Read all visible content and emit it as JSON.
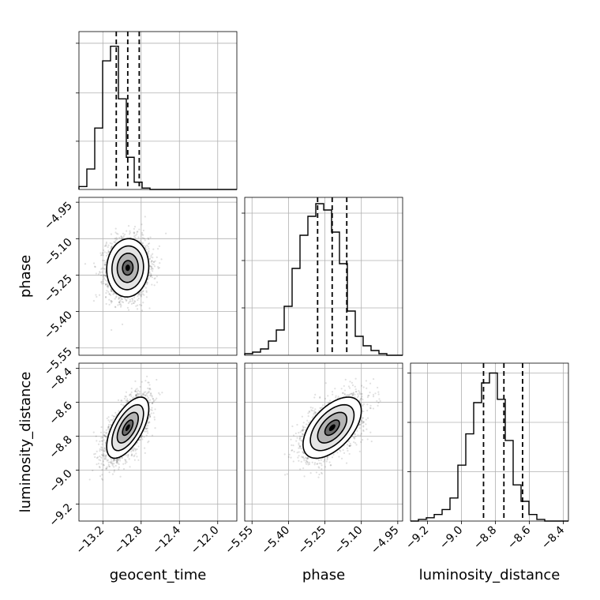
{
  "chart_data": {
    "type": "corner",
    "grid": true,
    "parameters": [
      {
        "name": "geocent_time",
        "range": [
          -13.45,
          -11.8
        ],
        "ticks": [
          -13.2,
          -12.8,
          -12.4,
          -12.0
        ],
        "tick_labels": [
          "−13.2",
          "−12.8",
          "−12.4",
          "−12.0"
        ],
        "mean": -12.94,
        "std": 0.11,
        "quantiles": [
          -13.06,
          -12.94,
          -12.82
        ],
        "hist_edges_start": -13.45,
        "hist_bin_width": 0.0825,
        "hist_values": [
          0.02,
          0.14,
          0.42,
          0.88,
          0.98,
          0.62,
          0.22,
          0.05,
          0.01,
          0,
          0,
          0,
          0,
          0,
          0,
          0,
          0,
          0,
          0,
          0
        ],
        "hist_ylim": [
          0,
          1.08
        ],
        "hist_ticks": [
          0.33,
          0.66,
          1.0
        ]
      },
      {
        "name": "phase",
        "range": [
          -5.58,
          -4.93
        ],
        "ticks": [
          -5.55,
          -5.4,
          -5.25,
          -5.1,
          -4.95
        ],
        "tick_labels": [
          "−5.55",
          "−5.40",
          "−5.25",
          "−5.10",
          "−4.95"
        ],
        "mean": -5.22,
        "std": 0.06,
        "quantiles": [
          -5.28,
          -5.22,
          -5.16
        ],
        "hist_edges_start": -5.58,
        "hist_bin_width": 0.0325,
        "hist_values": [
          0.01,
          0.02,
          0.04,
          0.09,
          0.16,
          0.31,
          0.55,
          0.76,
          0.88,
          0.96,
          0.92,
          0.78,
          0.58,
          0.28,
          0.12,
          0.06,
          0.03,
          0.01,
          0,
          0
        ],
        "hist_ylim": [
          0,
          1.0
        ],
        "hist_ticks": [
          0.3,
          0.6,
          0.9
        ]
      },
      {
        "name": "luminosity_distance",
        "range": [
          -9.3,
          -8.37
        ],
        "ticks": [
          -9.2,
          -9.0,
          -8.8,
          -8.6,
          -8.4
        ],
        "tick_labels": [
          "−9.2",
          "−9.0",
          "−8.8",
          "−8.6",
          "−8.4"
        ],
        "mean": -8.75,
        "std": 0.09,
        "quantiles": [
          -8.87,
          -8.75,
          -8.64
        ],
        "hist_edges_start": -9.3,
        "hist_bin_width": 0.0465,
        "hist_values": [
          0.0,
          0.01,
          0.02,
          0.04,
          0.07,
          0.14,
          0.34,
          0.53,
          0.72,
          0.84,
          0.9,
          0.74,
          0.49,
          0.22,
          0.12,
          0.04,
          0.01,
          0,
          0,
          0
        ],
        "hist_ylim": [
          0,
          0.96
        ],
        "hist_ticks": [
          0.3,
          0.6,
          0.9
        ]
      }
    ],
    "pairs": [
      {
        "x": 0,
        "y": 1,
        "correlation": 0.05
      },
      {
        "x": 0,
        "y": 2,
        "correlation": 0.62
      },
      {
        "x": 1,
        "y": 2,
        "correlation": 0.55
      }
    ]
  }
}
